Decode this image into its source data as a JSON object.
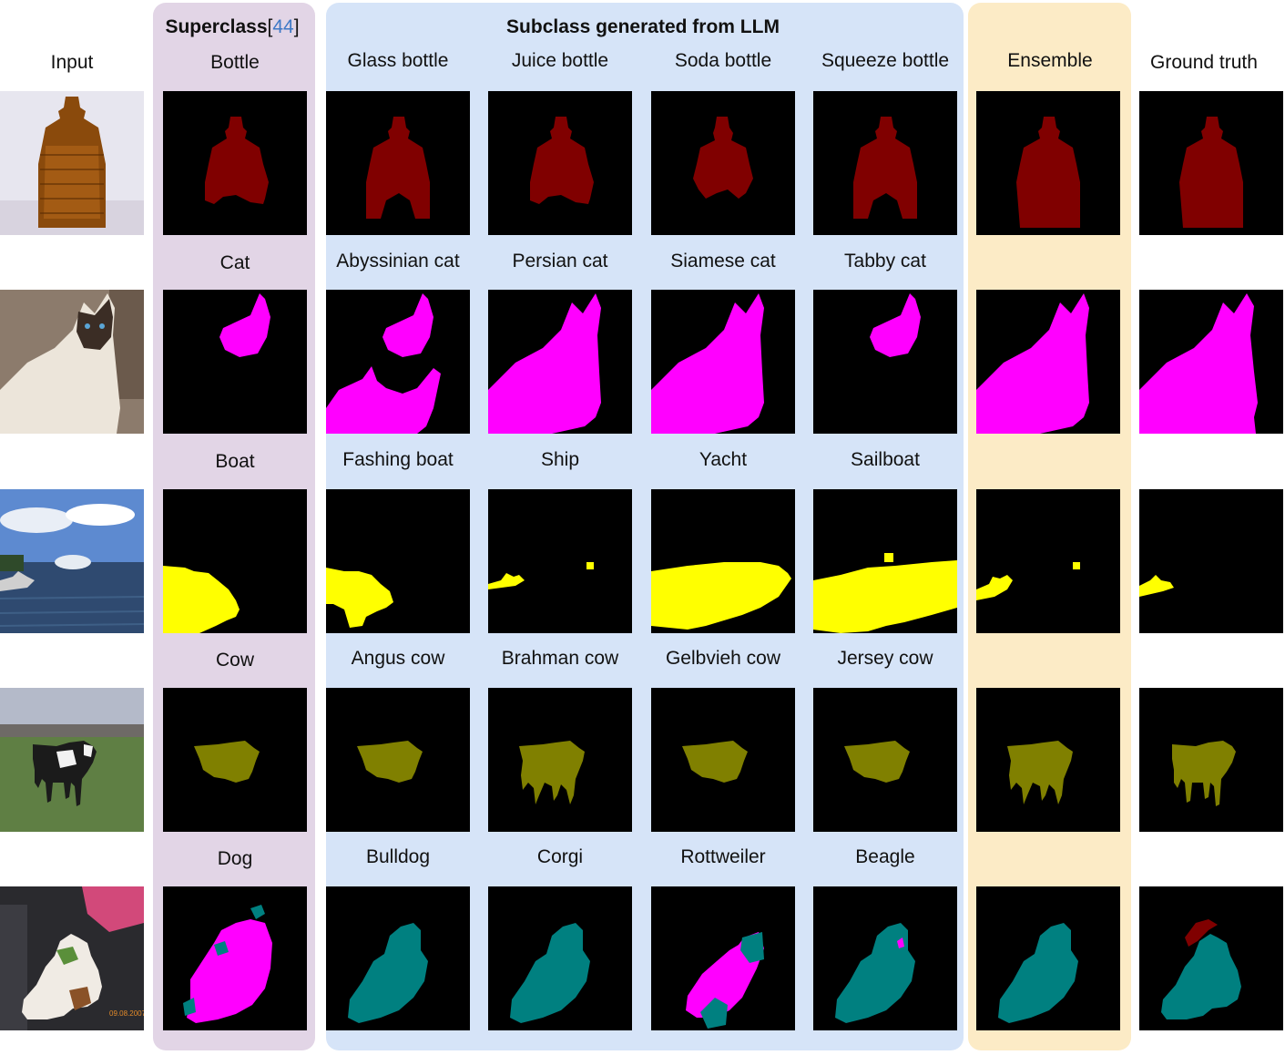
{
  "columns": {
    "input": "Input",
    "superclass_title": "Superclass",
    "superclass_citation": "44",
    "subclass_title": "Subclass generated from LLM",
    "ensemble": "Ensemble",
    "ground_truth": "Ground truth"
  },
  "rows": [
    {
      "superclass": "Bottle",
      "subclasses": [
        "Glass bottle",
        "Juice bottle",
        "Soda bottle",
        "Squeeze bottle"
      ],
      "mask_color": "#800000"
    },
    {
      "superclass": "Cat",
      "subclasses": [
        "Abyssinian cat",
        "Persian cat",
        "Siamese cat",
        "Tabby cat"
      ],
      "mask_color": "#ff00ff"
    },
    {
      "superclass": "Boat",
      "subclasses": [
        "Fashing boat",
        "Ship",
        "Yacht",
        "Sailboat"
      ],
      "mask_color": "#ffff00"
    },
    {
      "superclass": "Cow",
      "subclasses": [
        "Angus cow",
        "Brahman cow",
        "Gelbvieh cow",
        "Jersey cow"
      ],
      "mask_color": "#808000"
    },
    {
      "superclass": "Dog",
      "subclasses": [
        "Bulldog",
        "Corgi",
        "Rottweiler",
        "Beagle"
      ],
      "mask_color": "#008080"
    }
  ]
}
